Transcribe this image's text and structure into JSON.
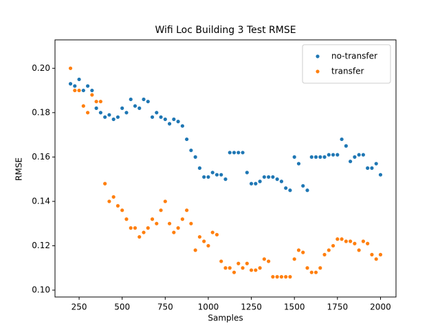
{
  "chart_data": {
    "type": "scatter",
    "title": "Wifi Loc Building 3 Test RMSE",
    "xlabel": "Samples",
    "ylabel": "RMSE",
    "x": [
      200,
      225,
      250,
      275,
      300,
      325,
      350,
      375,
      400,
      425,
      450,
      475,
      500,
      525,
      550,
      575,
      600,
      625,
      650,
      675,
      700,
      725,
      750,
      775,
      800,
      825,
      850,
      875,
      900,
      925,
      950,
      975,
      1000,
      1025,
      1050,
      1075,
      1100,
      1125,
      1150,
      1175,
      1200,
      1225,
      1250,
      1275,
      1300,
      1325,
      1350,
      1375,
      1400,
      1425,
      1450,
      1475,
      1500,
      1525,
      1550,
      1575,
      1600,
      1625,
      1650,
      1675,
      1700,
      1725,
      1750,
      1775,
      1800,
      1825,
      1850,
      1875,
      1900,
      1925,
      1950,
      1975,
      2000
    ],
    "series": [
      {
        "name": "no-transfer",
        "color": "#1f77b4",
        "values": [
          0.193,
          0.192,
          0.195,
          0.19,
          0.192,
          0.19,
          0.182,
          0.18,
          0.178,
          0.179,
          0.177,
          0.178,
          0.182,
          0.18,
          0.186,
          0.183,
          0.182,
          0.186,
          0.185,
          0.178,
          0.18,
          0.178,
          0.177,
          0.175,
          0.177,
          0.176,
          0.174,
          0.168,
          0.163,
          0.16,
          0.155,
          0.151,
          0.151,
          0.153,
          0.152,
          0.152,
          0.15,
          0.162,
          0.162,
          0.162,
          0.162,
          0.153,
          0.148,
          0.148,
          0.149,
          0.151,
          0.151,
          0.151,
          0.15,
          0.149,
          0.146,
          0.145,
          0.16,
          0.157,
          0.147,
          0.145,
          0.16,
          0.16,
          0.16,
          0.16,
          0.161,
          0.161,
          0.161,
          0.168,
          0.165,
          0.158,
          0.16,
          0.161,
          0.161,
          0.155,
          0.155,
          0.157,
          0.152
        ]
      },
      {
        "name": "transfer",
        "color": "#ff7f0e",
        "values": [
          0.2,
          0.19,
          0.19,
          0.183,
          0.18,
          0.188,
          0.185,
          0.185,
          0.148,
          0.14,
          0.142,
          0.138,
          0.136,
          0.132,
          0.128,
          0.128,
          0.124,
          0.126,
          0.128,
          0.132,
          0.13,
          0.136,
          0.14,
          0.13,
          0.126,
          0.128,
          0.132,
          0.136,
          0.13,
          0.118,
          0.124,
          0.122,
          0.12,
          0.126,
          0.125,
          0.113,
          0.11,
          0.11,
          0.108,
          0.112,
          0.11,
          0.112,
          0.109,
          0.109,
          0.11,
          0.114,
          0.113,
          0.106,
          0.106,
          0.106,
          0.106,
          0.106,
          0.114,
          0.118,
          0.117,
          0.11,
          0.108,
          0.108,
          0.11,
          0.116,
          0.118,
          0.12,
          0.123,
          0.123,
          0.122,
          0.122,
          0.121,
          0.118,
          0.122,
          0.121,
          0.116,
          0.114,
          0.116
        ]
      }
    ],
    "xlim": [
      110,
      2090
    ],
    "ylim": [
      0.0969,
      0.2128
    ],
    "xticks": [
      250,
      500,
      750,
      1000,
      1250,
      1500,
      1750,
      2000
    ],
    "yticks": [
      {
        "value": 0.1,
        "label": "0.10"
      },
      0.12,
      0.14,
      0.16,
      0.18,
      {
        "value": 0.2,
        "label": "0.20"
      }
    ],
    "legend": "upper right",
    "grid": false
  }
}
